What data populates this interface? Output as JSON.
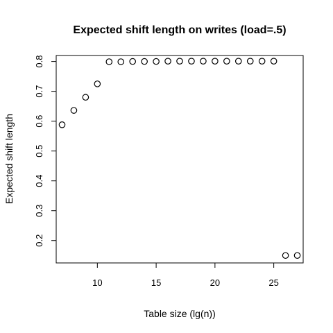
{
  "chart_data": {
    "type": "scatter",
    "title": "Expected shift length on writes (load=.5)",
    "xlabel": "Table size (lg(n))",
    "ylabel": "Expected shift length",
    "xlim": [
      6.5,
      27.5
    ],
    "ylim": [
      0.125,
      0.82
    ],
    "xticks": [
      10,
      15,
      20,
      25
    ],
    "yticks": [
      0.2,
      0.3,
      0.4,
      0.5,
      0.6,
      0.7,
      0.8
    ],
    "grid": false,
    "legend": "none",
    "marker": "open-circle",
    "color": "#000000",
    "x": [
      7,
      8,
      9,
      10,
      11,
      12,
      13,
      14,
      15,
      16,
      17,
      18,
      19,
      20,
      21,
      22,
      23,
      24,
      25,
      26,
      27
    ],
    "y": [
      0.588,
      0.636,
      0.68,
      0.725,
      0.799,
      0.799,
      0.8,
      0.8,
      0.8,
      0.801,
      0.801,
      0.801,
      0.801,
      0.801,
      0.801,
      0.801,
      0.801,
      0.801,
      0.801,
      0.15,
      0.15
    ]
  }
}
